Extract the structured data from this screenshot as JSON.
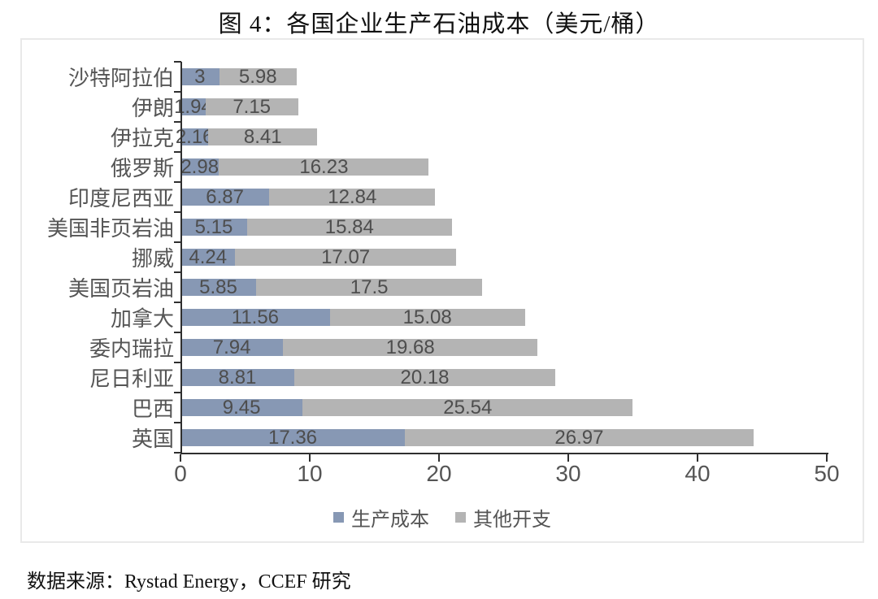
{
  "title": "图 4：各国企业生产石油成本（美元/桶）",
  "source": "数据来源：Rystad Energy，CCEF 研究",
  "colors": {
    "axis": "#2f2f2f",
    "label_text": "#555555",
    "value_text": "#4d4d4d",
    "frame_border": "#e9e9e9",
    "background": "#ffffff"
  },
  "chart_data": {
    "type": "bar",
    "orientation": "horizontal",
    "stacked": true,
    "title": "图 4：各国企业生产石油成本（美元/桶）",
    "xlabel": "",
    "ylabel": "",
    "unit": "美元/桶",
    "categories": [
      "沙特阿拉伯",
      "伊朗",
      "伊拉克",
      "俄罗斯",
      "印度尼西亚",
      "美国非页岩油",
      "挪威",
      "美国页岩油",
      "加拿大",
      "委内瑞拉",
      "尼日利亚",
      "巴西",
      "英国"
    ],
    "series": [
      {
        "name": "生产成本",
        "color": "#8798B4",
        "values": [
          3,
          1.94,
          2.16,
          2.98,
          6.87,
          5.15,
          4.24,
          5.85,
          11.56,
          7.94,
          8.81,
          9.45,
          17.36
        ]
      },
      {
        "name": "其他开支",
        "color": "#B4B4B4",
        "values": [
          5.98,
          7.15,
          8.41,
          16.23,
          12.84,
          15.84,
          17.07,
          17.5,
          15.08,
          19.68,
          20.18,
          25.54,
          26.97
        ]
      }
    ],
    "totals": [
      8.98,
      9.09,
      10.57,
      19.21,
      19.71,
      20.99,
      21.31,
      23.35,
      26.64,
      27.62,
      28.99,
      34.99,
      44.33
    ],
    "xlim": [
      0,
      50
    ],
    "x_ticks": [
      0,
      10,
      20,
      30,
      40,
      50
    ],
    "grid": false,
    "value_labels": true,
    "legend_position": "bottom"
  }
}
